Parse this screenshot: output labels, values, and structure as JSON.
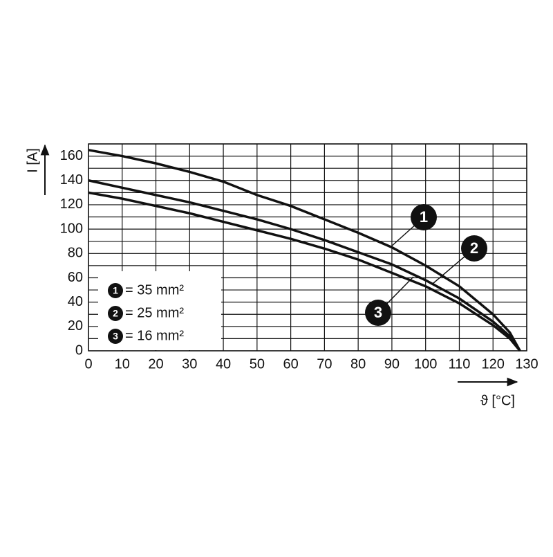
{
  "chart_data": {
    "type": "line",
    "x_label": "ϑ [°C]",
    "y_label": "I [A]",
    "x": [
      0,
      10,
      20,
      30,
      40,
      50,
      60,
      70,
      80,
      90,
      100,
      110,
      120,
      125,
      128
    ],
    "series": [
      {
        "name": "= 35 mm²",
        "marker": "1",
        "color": "#111111",
        "values": [
          165,
          160,
          154,
          147,
          139,
          128,
          119,
          108,
          97,
          85,
          70,
          53,
          30,
          15,
          0
        ]
      },
      {
        "name": "= 25 mm²",
        "marker": "2",
        "color": "#111111",
        "values": [
          140,
          134,
          128,
          122,
          115,
          108,
          100,
          91,
          81,
          71,
          58,
          43,
          24,
          12,
          0
        ]
      },
      {
        "name": "= 16 mm²",
        "marker": "3",
        "color": "#111111",
        "values": [
          130,
          125,
          119,
          113,
          106,
          99,
          92,
          84,
          75,
          64,
          53,
          39,
          21,
          10,
          0
        ]
      }
    ],
    "xlim": [
      0,
      130
    ],
    "ylim": [
      0,
      170
    ],
    "xticks": [
      0,
      10,
      20,
      30,
      40,
      50,
      60,
      70,
      80,
      90,
      100,
      110,
      120,
      130
    ],
    "yticks": [
      0,
      20,
      40,
      60,
      80,
      100,
      120,
      140,
      160
    ],
    "grid_y": [
      10,
      30,
      50,
      70,
      90,
      110,
      130,
      150,
      170
    ],
    "grid": true
  }
}
